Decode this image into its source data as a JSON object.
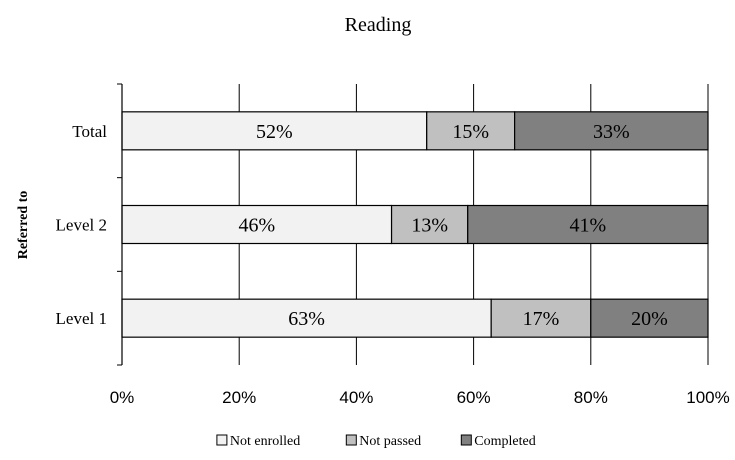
{
  "chart_data": {
    "type": "bar",
    "orientation": "horizontal",
    "stacked": true,
    "title": "Reading",
    "ylabel": "Referred to",
    "xlabel": "",
    "categories": [
      "Total",
      "Level 2",
      "Level 1"
    ],
    "series": [
      {
        "name": "Not enrolled",
        "values": [
          52,
          46,
          63
        ],
        "labels": [
          "52%",
          "46%",
          "63%"
        ],
        "color": "#f2f2f2"
      },
      {
        "name": "Not passed",
        "values": [
          15,
          13,
          17
        ],
        "labels": [
          "15%",
          "13%",
          "17%"
        ],
        "color": "#c0c0c0"
      },
      {
        "name": "Completed",
        "values": [
          33,
          41,
          20
        ],
        "labels": [
          "33%",
          "41%",
          "20%"
        ],
        "color": "#808080"
      }
    ],
    "xlim": [
      0,
      100
    ],
    "xticks": [
      0,
      20,
      40,
      60,
      80,
      100
    ],
    "xtick_labels": [
      "0%",
      "20%",
      "40%",
      "60%",
      "80%",
      "100%"
    ],
    "grid": "vertical",
    "legend_position": "bottom"
  }
}
